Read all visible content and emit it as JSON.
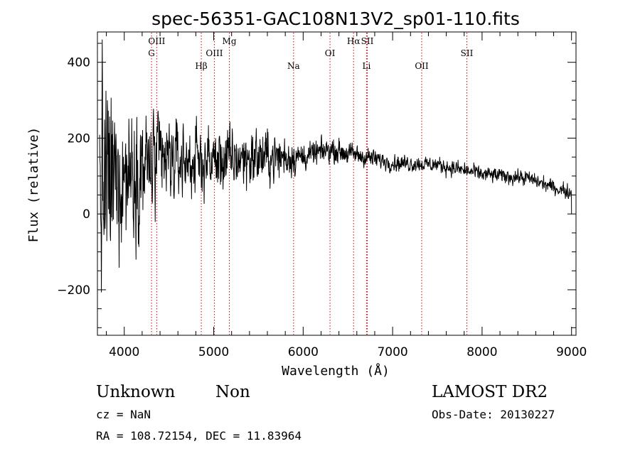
{
  "chart_data": {
    "type": "line",
    "title": "spec-56351-GAC108N13V2_sp01-110.fits",
    "xlabel": "Wavelength (Å)",
    "ylabel": "Flux (relative)",
    "xlim": [
      3700,
      9050
    ],
    "ylim": [
      -320,
      480
    ],
    "x_ticks": [
      {
        "value": 4000,
        "label": "4000"
      },
      {
        "value": 5000,
        "label": "5000"
      },
      {
        "value": 6000,
        "label": "6000"
      },
      {
        "value": 7000,
        "label": "7000"
      },
      {
        "value": 8000,
        "label": "8000"
      },
      {
        "value": 9000,
        "label": "9000"
      }
    ],
    "y_ticks": [
      {
        "value": -200,
        "label": "−200"
      },
      {
        "value": 0,
        "label": "0"
      },
      {
        "value": 200,
        "label": "200"
      },
      {
        "value": 400,
        "label": "400"
      }
    ],
    "line_color": "#000000",
    "marker_color": "#cc0000",
    "spectral_lines": [
      {
        "label": "OIII",
        "wavelength": 4363,
        "row": 0
      },
      {
        "label": "G",
        "wavelength": 4305,
        "row": 1
      },
      {
        "label": "Hβ",
        "wavelength": 4861,
        "row": 2
      },
      {
        "label": "OIII",
        "wavelength": 5007,
        "row": 1
      },
      {
        "label": "Mg",
        "wavelength": 5175,
        "row": 0
      },
      {
        "label": "Na",
        "wavelength": 5893,
        "row": 2
      },
      {
        "label": "OI",
        "wavelength": 6300,
        "row": 1
      },
      {
        "label": "Hα",
        "wavelength": 6563,
        "row": 0
      },
      {
        "label": "SII",
        "wavelength": 6717,
        "row": 0
      },
      {
        "label": "Li",
        "wavelength": 6708,
        "row": 2
      },
      {
        "label": "OII",
        "wavelength": 7325,
        "row": 2
      },
      {
        "label": "SII",
        "wavelength": 7830,
        "row": 1
      }
    ],
    "spectrum": {
      "x_start": 3725,
      "x_end": 9000,
      "continuum": [
        [
          3725,
          60
        ],
        [
          4000,
          110
        ],
        [
          4500,
          140
        ],
        [
          5000,
          140
        ],
        [
          5500,
          150
        ],
        [
          6000,
          150
        ],
        [
          6300,
          170
        ],
        [
          6600,
          155
        ],
        [
          7000,
          135
        ],
        [
          7500,
          130
        ],
        [
          8000,
          105
        ],
        [
          8500,
          95
        ],
        [
          8800,
          70
        ],
        [
          9000,
          55
        ]
      ],
      "noise_envelope": [
        [
          3725,
          210
        ],
        [
          4000,
          115
        ],
        [
          4300,
          95
        ],
        [
          4600,
          65
        ],
        [
          5000,
          55
        ],
        [
          5500,
          48
        ],
        [
          5800,
          38
        ],
        [
          6000,
          22
        ],
        [
          6500,
          18
        ],
        [
          7000,
          14
        ],
        [
          8000,
          13
        ],
        [
          9000,
          12
        ]
      ]
    }
  },
  "info": {
    "object_class": "Unknown",
    "subclass": "Non",
    "survey": "LAMOST DR2",
    "redshift": "cz = NaN",
    "obs_date": "Obs-Date: 20130227",
    "coords": "RA = 108.72154, DEC =  11.83964"
  }
}
